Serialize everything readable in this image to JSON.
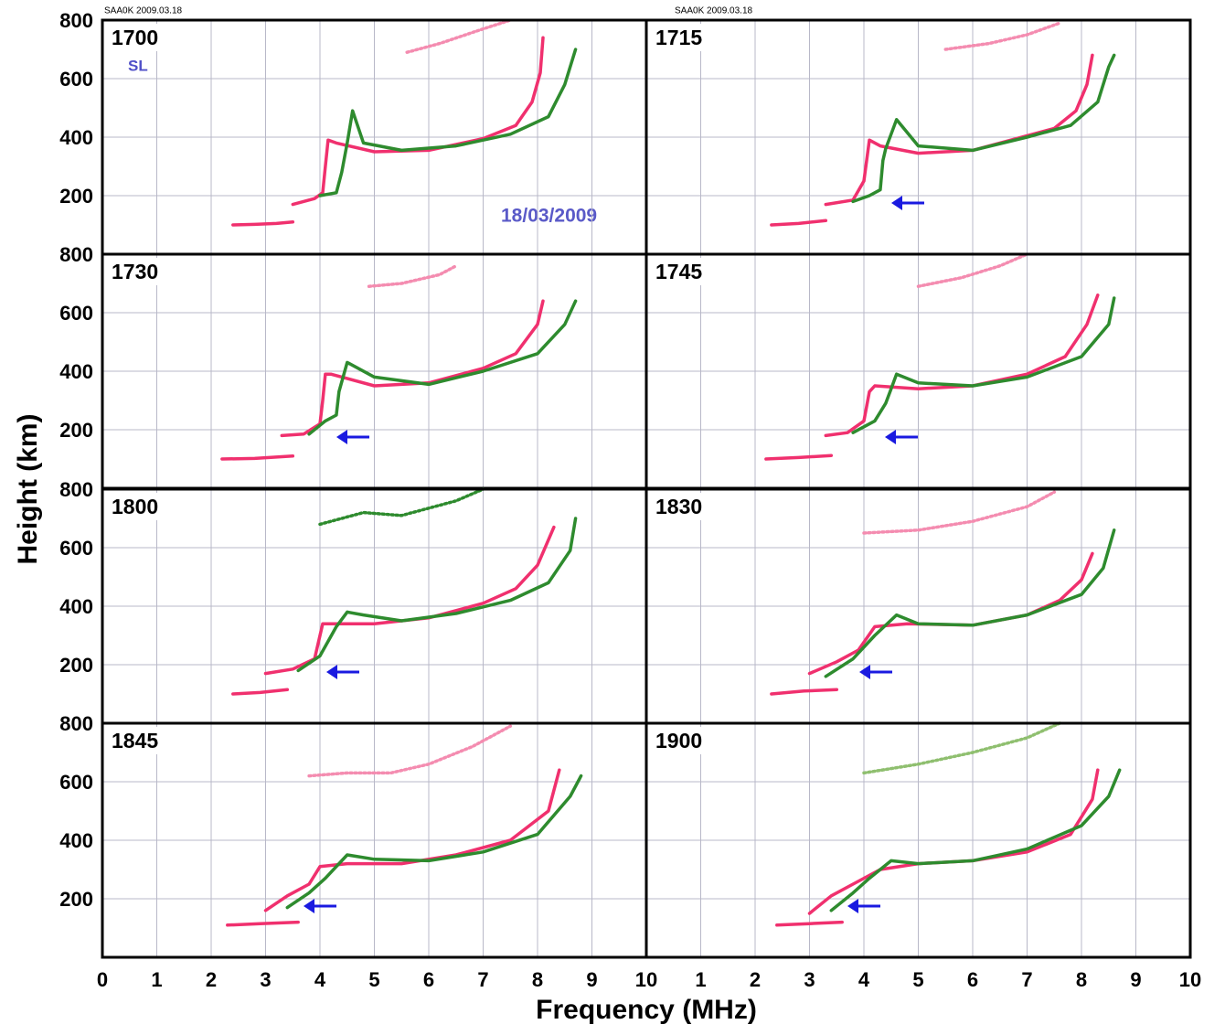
{
  "headers": [
    "SAA0K 2009.03.18",
    "SAA0K 2009.03.18"
  ],
  "xlabel": "Frequency (MHz)",
  "ylabel": "Height (km)",
  "annotations": [
    "SL",
    "18/03/2009"
  ],
  "chart_data": [
    {
      "type": "line",
      "title": "1700",
      "xlim": [
        0,
        10
      ],
      "ylim": [
        0,
        800
      ],
      "xticks": [
        0,
        1,
        2,
        3,
        4,
        5,
        6,
        7,
        8,
        9,
        10
      ],
      "yticks": [
        200,
        400,
        600,
        800
      ],
      "grid": true,
      "series": [
        {
          "color": "#f0306e",
          "x": [
            2.4,
            2.8,
            3.2,
            3.5
          ],
          "values": [
            100,
            102,
            105,
            110
          ]
        },
        {
          "color": "#f0306e",
          "x": [
            3.5,
            3.9,
            4.05,
            4.1,
            4.15,
            4.3,
            5,
            6,
            7,
            7.6,
            7.9,
            8.05,
            8.1
          ],
          "values": [
            170,
            190,
            210,
            300,
            390,
            380,
            350,
            355,
            395,
            440,
            520,
            620,
            740
          ]
        },
        {
          "color": "#2e8b2e",
          "x": [
            4.0,
            4.3,
            4.4,
            4.5,
            4.6,
            4.8,
            5.5,
            6.5,
            7.5,
            8.2,
            8.5,
            8.7
          ],
          "values": [
            200,
            210,
            280,
            380,
            490,
            380,
            355,
            370,
            410,
            470,
            580,
            700
          ]
        },
        {
          "color": "#f48cb0",
          "x": [
            5.6,
            6.2,
            7,
            7.5
          ],
          "values": [
            690,
            720,
            770,
            800
          ]
        }
      ]
    },
    {
      "type": "line",
      "title": "1715",
      "xlim": [
        0,
        10
      ],
      "ylim": [
        0,
        800
      ],
      "xticks": [
        1,
        2,
        3,
        4,
        5,
        6,
        7,
        8,
        9,
        10
      ],
      "yticks": [
        200,
        400,
        600,
        800
      ],
      "grid": true,
      "series": [
        {
          "color": "#f0306e",
          "x": [
            2.3,
            2.8,
            3.3
          ],
          "values": [
            100,
            105,
            115
          ]
        },
        {
          "color": "#f0306e",
          "x": [
            3.3,
            3.8,
            4.0,
            4.1,
            4.3,
            5,
            6,
            7,
            7.5,
            7.9,
            8.1,
            8.2
          ],
          "values": [
            170,
            185,
            250,
            390,
            370,
            345,
            355,
            405,
            430,
            490,
            580,
            680
          ]
        },
        {
          "color": "#2e8b2e",
          "x": [
            3.8,
            4.1,
            4.3,
            4.35,
            4.4,
            4.6,
            5,
            6,
            7,
            7.8,
            8.3,
            8.5,
            8.6
          ],
          "values": [
            180,
            200,
            220,
            320,
            360,
            460,
            370,
            355,
            400,
            440,
            520,
            640,
            680
          ]
        },
        {
          "color": "#f48cb0",
          "x": [
            5.5,
            6.3,
            7,
            7.6
          ],
          "values": [
            700,
            720,
            750,
            790
          ]
        }
      ]
    },
    {
      "type": "line",
      "title": "1730",
      "xlim": [
        0,
        10
      ],
      "ylim": [
        0,
        800
      ],
      "xticks": [
        0,
        1,
        2,
        3,
        4,
        5,
        6,
        7,
        8,
        9,
        10
      ],
      "yticks": [
        200,
        400,
        600,
        800
      ],
      "grid": true,
      "series": [
        {
          "color": "#f0306e",
          "x": [
            2.2,
            2.8,
            3.5
          ],
          "values": [
            100,
            102,
            110
          ]
        },
        {
          "color": "#f0306e",
          "x": [
            3.3,
            3.7,
            4.0,
            4.05,
            4.1,
            4.2,
            5,
            6,
            7,
            7.6,
            8.0,
            8.1
          ],
          "values": [
            180,
            185,
            220,
            300,
            390,
            390,
            350,
            360,
            410,
            460,
            560,
            640
          ]
        },
        {
          "color": "#2e8b2e",
          "x": [
            3.8,
            4.1,
            4.3,
            4.35,
            4.5,
            5,
            6,
            7,
            8,
            8.5,
            8.7
          ],
          "values": [
            185,
            230,
            250,
            330,
            430,
            380,
            355,
            400,
            460,
            560,
            640
          ]
        },
        {
          "color": "#f48cb0",
          "x": [
            4.9,
            5.5,
            6.2,
            6.5
          ],
          "values": [
            690,
            700,
            730,
            760
          ]
        }
      ]
    },
    {
      "type": "line",
      "title": "1745",
      "xlim": [
        0,
        10
      ],
      "ylim": [
        0,
        800
      ],
      "xticks": [
        1,
        2,
        3,
        4,
        5,
        6,
        7,
        8,
        9,
        10
      ],
      "yticks": [
        200,
        400,
        600,
        800
      ],
      "grid": true,
      "series": [
        {
          "color": "#f0306e",
          "x": [
            2.2,
            2.8,
            3.4
          ],
          "values": [
            100,
            105,
            112
          ]
        },
        {
          "color": "#f0306e",
          "x": [
            3.3,
            3.7,
            4.0,
            4.1,
            4.2,
            5,
            6,
            7,
            7.7,
            8.1,
            8.3
          ],
          "values": [
            180,
            190,
            230,
            330,
            350,
            340,
            350,
            390,
            450,
            560,
            660
          ]
        },
        {
          "color": "#2e8b2e",
          "x": [
            3.8,
            4.2,
            4.4,
            4.5,
            4.6,
            5,
            6,
            7,
            8,
            8.5,
            8.6
          ],
          "values": [
            190,
            230,
            290,
            340,
            390,
            360,
            350,
            380,
            450,
            560,
            650
          ]
        },
        {
          "color": "#f48cb0",
          "x": [
            5.0,
            5.8,
            6.5,
            7.0
          ],
          "values": [
            690,
            720,
            760,
            800
          ]
        }
      ]
    },
    {
      "type": "line",
      "title": "1800",
      "xlim": [
        0,
        10
      ],
      "ylim": [
        0,
        800
      ],
      "xticks": [
        0,
        1,
        2,
        3,
        4,
        5,
        6,
        7,
        8,
        9,
        10
      ],
      "yticks": [
        200,
        400,
        600,
        800
      ],
      "grid": true,
      "series": [
        {
          "color": "#f0306e",
          "x": [
            2.4,
            2.9,
            3.4
          ],
          "values": [
            100,
            105,
            115
          ]
        },
        {
          "color": "#f0306e",
          "x": [
            3.0,
            3.5,
            3.9,
            4.05,
            4.2,
            5,
            6,
            7,
            7.6,
            8.0,
            8.3
          ],
          "values": [
            170,
            185,
            220,
            340,
            340,
            340,
            360,
            410,
            460,
            540,
            670
          ]
        },
        {
          "color": "#2e8b2e",
          "x": [
            3.6,
            4.0,
            4.3,
            4.5,
            4.8,
            5.5,
            6.5,
            7.5,
            8.2,
            8.6,
            8.7
          ],
          "values": [
            180,
            230,
            330,
            380,
            370,
            350,
            375,
            420,
            480,
            590,
            700
          ]
        },
        {
          "color": "#2e8b2e",
          "x": [
            4.0,
            4.8,
            5.5,
            6.5,
            7.0
          ],
          "values": [
            680,
            720,
            710,
            760,
            800
          ]
        }
      ]
    },
    {
      "type": "line",
      "title": "1830",
      "xlim": [
        0,
        10
      ],
      "ylim": [
        0,
        800
      ],
      "xticks": [
        1,
        2,
        3,
        4,
        5,
        6,
        7,
        8,
        9,
        10
      ],
      "yticks": [
        200,
        400,
        600,
        800
      ],
      "grid": true,
      "series": [
        {
          "color": "#f0306e",
          "x": [
            2.3,
            2.9,
            3.5
          ],
          "values": [
            100,
            110,
            115
          ]
        },
        {
          "color": "#f0306e",
          "x": [
            3.0,
            3.5,
            3.9,
            4.2,
            4.8,
            6,
            7,
            7.6,
            8.0,
            8.2
          ],
          "values": [
            170,
            210,
            250,
            330,
            340,
            335,
            370,
            420,
            490,
            580
          ]
        },
        {
          "color": "#2e8b2e",
          "x": [
            3.3,
            3.8,
            4.2,
            4.6,
            5,
            6,
            7,
            8,
            8.4,
            8.6
          ],
          "values": [
            160,
            220,
            300,
            370,
            340,
            335,
            370,
            440,
            530,
            660
          ]
        },
        {
          "color": "#f48cb0",
          "x": [
            4.0,
            5.0,
            6.0,
            7.0,
            7.5
          ],
          "values": [
            650,
            660,
            690,
            740,
            790
          ]
        }
      ]
    },
    {
      "type": "line",
      "title": "1845",
      "xlim": [
        0,
        10
      ],
      "ylim": [
        0,
        800
      ],
      "xticks": [
        0,
        1,
        2,
        3,
        4,
        5,
        6,
        7,
        8,
        9,
        10
      ],
      "yticks": [
        200,
        400,
        600,
        800
      ],
      "grid": true,
      "series": [
        {
          "color": "#f0306e",
          "x": [
            2.3,
            2.9,
            3.6
          ],
          "values": [
            110,
            115,
            120
          ]
        },
        {
          "color": "#f0306e",
          "x": [
            3.0,
            3.4,
            3.8,
            4.0,
            4.5,
            5.5,
            6.5,
            7.5,
            8.2,
            8.4
          ],
          "values": [
            160,
            210,
            250,
            310,
            320,
            320,
            350,
            400,
            500,
            640
          ]
        },
        {
          "color": "#2e8b2e",
          "x": [
            3.4,
            3.8,
            4.1,
            4.5,
            5,
            6,
            7,
            8,
            8.6,
            8.8
          ],
          "values": [
            170,
            220,
            270,
            350,
            335,
            330,
            360,
            420,
            550,
            620
          ]
        },
        {
          "color": "#f48cb0",
          "x": [
            3.8,
            4.5,
            5.3,
            6.0,
            6.8,
            7.5
          ],
          "values": [
            620,
            630,
            630,
            660,
            720,
            790
          ]
        }
      ]
    },
    {
      "type": "line",
      "title": "1900",
      "xlim": [
        0,
        10
      ],
      "ylim": [
        0,
        800
      ],
      "xticks": [
        1,
        2,
        3,
        4,
        5,
        6,
        7,
        8,
        9,
        10
      ],
      "yticks": [
        200,
        400,
        600,
        800
      ],
      "grid": true,
      "series": [
        {
          "color": "#f0306e",
          "x": [
            2.4,
            3.0,
            3.6
          ],
          "values": [
            110,
            115,
            120
          ]
        },
        {
          "color": "#f0306e",
          "x": [
            3.0,
            3.4,
            3.8,
            4.3,
            5,
            6,
            7,
            7.8,
            8.2,
            8.3
          ],
          "values": [
            150,
            210,
            250,
            300,
            320,
            330,
            360,
            420,
            540,
            640
          ]
        },
        {
          "color": "#2e8b2e",
          "x": [
            3.4,
            3.8,
            4.1,
            4.5,
            5,
            6,
            7,
            8,
            8.5,
            8.7
          ],
          "values": [
            160,
            220,
            270,
            330,
            320,
            330,
            370,
            450,
            550,
            640
          ]
        },
        {
          "color": "#8fbf6f",
          "x": [
            4.0,
            5,
            6,
            7,
            7.6
          ],
          "values": [
            630,
            660,
            700,
            750,
            800
          ]
        }
      ]
    }
  ]
}
